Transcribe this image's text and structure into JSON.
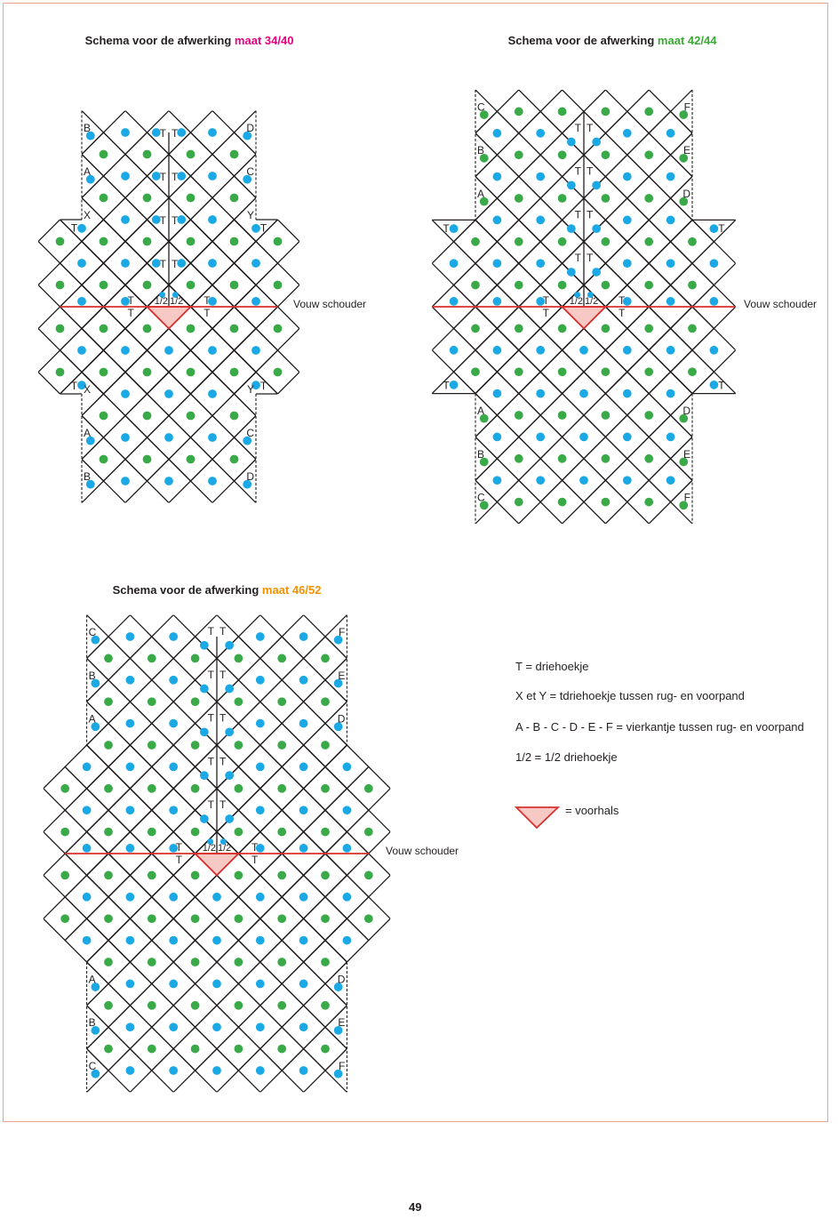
{
  "colors": {
    "blue_dot": "#1ba9e6",
    "green_dot": "#3aaa48",
    "fold_line": "#d9312e",
    "neck_fill": "#f7c9c4",
    "grid_line": "#231f20"
  },
  "diagrams": [
    {
      "title": "Schema voor de afwerking",
      "size": "maat 34/40",
      "size_color": "#e6007e",
      "fold_label": "Vouw schouder",
      "left_top": [
        "B",
        "A",
        "X"
      ],
      "right_top": [
        "D",
        "C",
        "Y"
      ],
      "left_bottom": [
        "X",
        "A",
        "B"
      ],
      "right_bottom": [
        "Y",
        "C",
        "D"
      ],
      "corner_label": "T",
      "center_label": "T",
      "half_label": "1/2"
    },
    {
      "title": "Schema voor de afwerking",
      "size": "maat 42/44",
      "size_color": "#3aaa35",
      "fold_label": "Vouw schouder",
      "left_top": [
        "C",
        "B",
        "A"
      ],
      "right_top": [
        "F",
        "E",
        "D"
      ],
      "left_bottom": [
        "A",
        "B",
        "C"
      ],
      "right_bottom": [
        "D",
        "E",
        "F"
      ],
      "corner_label": "T",
      "center_label": "T",
      "half_label": "1/2"
    },
    {
      "title": "Schema voor de afwerking",
      "size": "maat 46/52",
      "size_color": "#f39200",
      "fold_label": "Vouw schouder",
      "left_top": [
        "C",
        "B",
        "A"
      ],
      "right_top": [
        "F",
        "E",
        "D"
      ],
      "left_bottom": [
        "A",
        "B",
        "C"
      ],
      "right_bottom": [
        "D",
        "E",
        "F"
      ],
      "corner_label": "",
      "center_label": "T",
      "half_label": "1/2"
    }
  ],
  "legend": {
    "lines": [
      "T = driehoekje",
      "X et Y = tdriehoekje tussen rug- en voorpand",
      "A - B - C - D - E - F = vierkantje tussen rug- en voorpand",
      "1/2 = 1/2 driehoekje"
    ],
    "neck_label": "= voorhals"
  },
  "page_number": "49"
}
